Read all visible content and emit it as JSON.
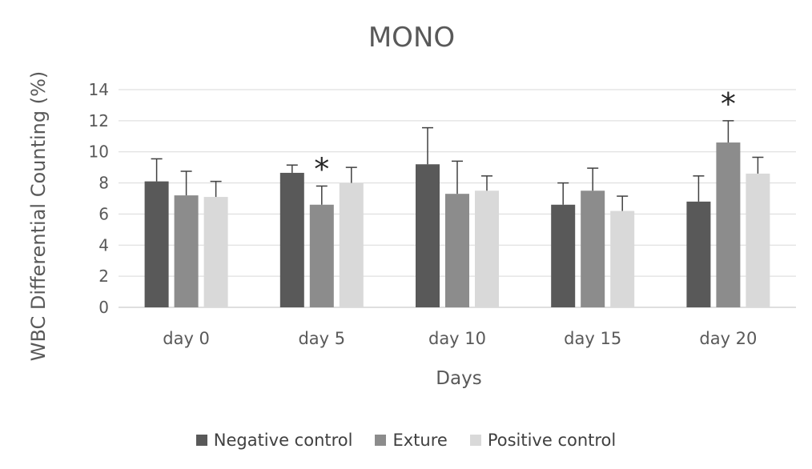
{
  "chart_data": {
    "type": "bar",
    "title": "MONO",
    "xlabel": "Days",
    "ylabel": "WBC Differential Counting (%)",
    "ylim": [
      0,
      14
    ],
    "yticks": [
      0,
      2,
      4,
      6,
      8,
      10,
      12,
      14
    ],
    "grid": true,
    "legend_position": "bottom",
    "categories": [
      "day 0",
      "day 5",
      "day 10",
      "day 15",
      "day 20"
    ],
    "series": [
      {
        "name": "Negative control",
        "color": "#595959",
        "values": [
          8.1,
          8.65,
          9.2,
          6.6,
          6.8
        ],
        "errors": [
          1.45,
          0.5,
          2.35,
          1.4,
          1.65
        ]
      },
      {
        "name": "Exture",
        "color": "#8c8c8c",
        "values": [
          7.2,
          6.6,
          7.3,
          7.5,
          10.6
        ],
        "errors": [
          1.55,
          1.2,
          2.1,
          1.45,
          1.4
        ]
      },
      {
        "name": "Positive control",
        "color": "#d9d9d9",
        "values": [
          7.1,
          8.0,
          7.5,
          6.2,
          8.6
        ],
        "errors": [
          1.0,
          1.0,
          0.95,
          0.95,
          1.05
        ]
      }
    ],
    "annotations": [
      {
        "text": "*",
        "category": "day 5",
        "series": "Exture"
      },
      {
        "text": "*",
        "category": "day 20",
        "series": "Exture"
      }
    ]
  }
}
